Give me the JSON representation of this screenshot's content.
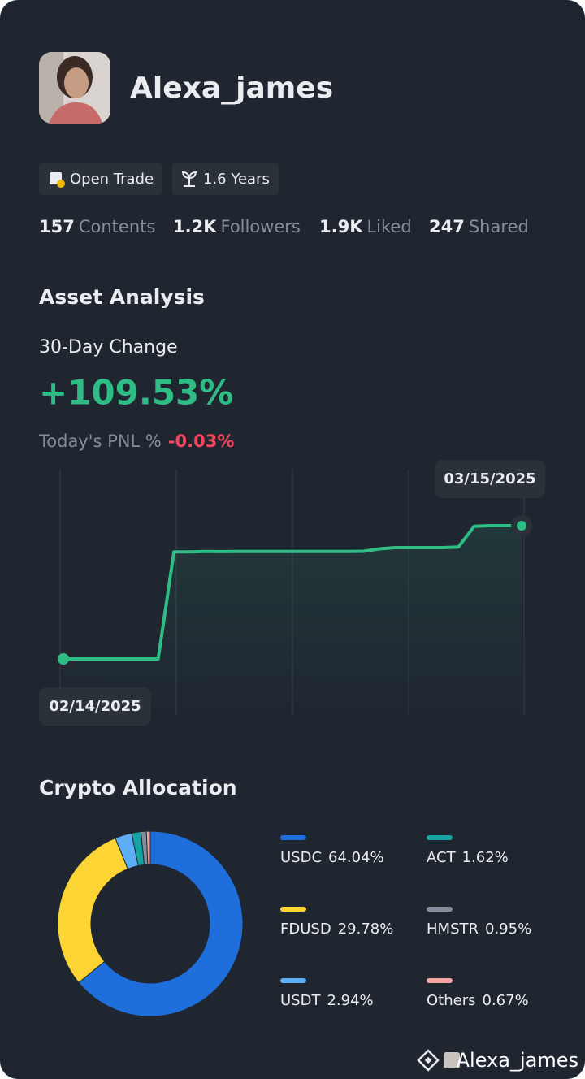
{
  "profile": {
    "name": "Alexa_james",
    "badges": [
      "Open Trade",
      "1.6 Years"
    ],
    "stats": [
      {
        "value": "157",
        "label": "Contents"
      },
      {
        "value": "1.2K",
        "label": "Followers"
      },
      {
        "value": "1.9K",
        "label": "Liked"
      },
      {
        "value": "247",
        "label": "Shared"
      }
    ]
  },
  "asset_analysis": {
    "title": "Asset Analysis",
    "change_label": "30-Day Change",
    "change_value": "+109.53%",
    "pnl_label": "Today's PNL %",
    "pnl_value": "-0.03%"
  },
  "chart_data": [
    {
      "type": "line",
      "start_label": "02/14/2025",
      "end_label": "03/15/2025",
      "color": "#2ebd85",
      "values": [
        0,
        0,
        0,
        0,
        0,
        0,
        0,
        88,
        88,
        88.3,
        88.2,
        88.3,
        88.3,
        88.3,
        88.3,
        88.3,
        88.3,
        88.3,
        88.3,
        88.5,
        90.5,
        91.5,
        91.5,
        91.5,
        91.5,
        92,
        109,
        109.53,
        109.53,
        109.53
      ]
    },
    {
      "type": "donut",
      "title": "Crypto Allocation",
      "series": [
        {
          "name": "USDC",
          "color": "#1e6fdb",
          "values": [
            64.04
          ],
          "value_labels": [
            "64.04%"
          ]
        },
        {
          "name": "FDUSD",
          "color": "#fcd535",
          "values": [
            29.78
          ],
          "value_labels": [
            "29.78%"
          ]
        },
        {
          "name": "USDT",
          "color": "#5eaef5",
          "values": [
            2.94
          ],
          "value_labels": [
            "2.94%"
          ]
        },
        {
          "name": "ACT",
          "color": "#14a5a5",
          "values": [
            1.62
          ],
          "value_labels": [
            "1.62%"
          ]
        },
        {
          "name": "HMSTR",
          "color": "#848e9c",
          "values": [
            0.95
          ],
          "value_labels": [
            "0.95%"
          ]
        },
        {
          "name": "Others",
          "color": "#f6a5a5",
          "values": [
            0.67
          ],
          "value_labels": [
            "0.67%"
          ]
        }
      ]
    }
  ],
  "footer": {
    "name": "Alexa_james"
  }
}
